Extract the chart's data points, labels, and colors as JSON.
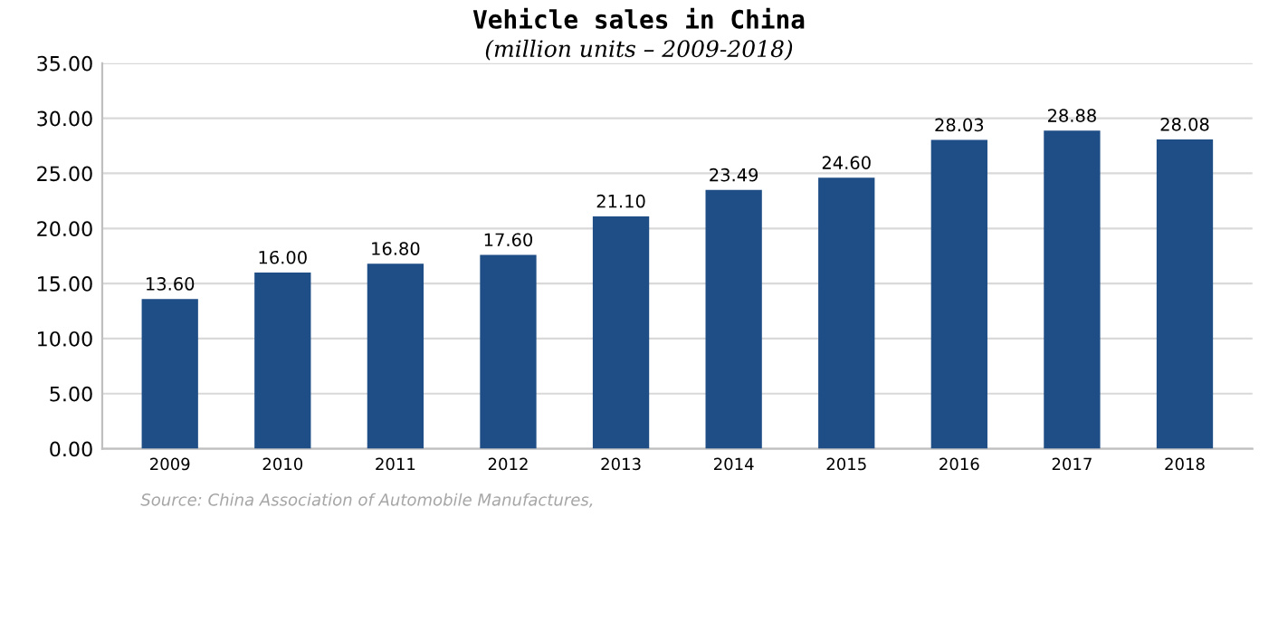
{
  "chart_data": {
    "type": "bar",
    "title": "Vehicle sales in China",
    "subtitle": "(million units – 2009-2018)",
    "categories": [
      "2009",
      "2010",
      "2011",
      "2012",
      "2013",
      "2014",
      "2015",
      "2016",
      "2017",
      "2018"
    ],
    "values": [
      13.6,
      16.0,
      16.8,
      17.6,
      21.1,
      23.49,
      24.6,
      28.03,
      28.88,
      28.08
    ],
    "value_labels": [
      "13.60",
      "16.00",
      "16.80",
      "17.60",
      "21.10",
      "23.49",
      "24.60",
      "28.03",
      "28.88",
      "28.08"
    ],
    "color": "#1f4e87",
    "ylim": [
      0,
      35
    ],
    "yticks": [
      {
        "value": 0,
        "label": "0.00"
      },
      {
        "value": 5,
        "label": "5.00"
      },
      {
        "value": 10,
        "label": "10.00"
      },
      {
        "value": 15,
        "label": "15.00"
      },
      {
        "value": 20,
        "label": "20.00"
      },
      {
        "value": 25,
        "label": "25.00"
      },
      {
        "value": 30,
        "label": "30.00"
      },
      {
        "value": 35,
        "label": "35.00"
      }
    ],
    "grid": "y",
    "annotations": [
      "Source: China Association of Automobile Manufactures,"
    ]
  }
}
